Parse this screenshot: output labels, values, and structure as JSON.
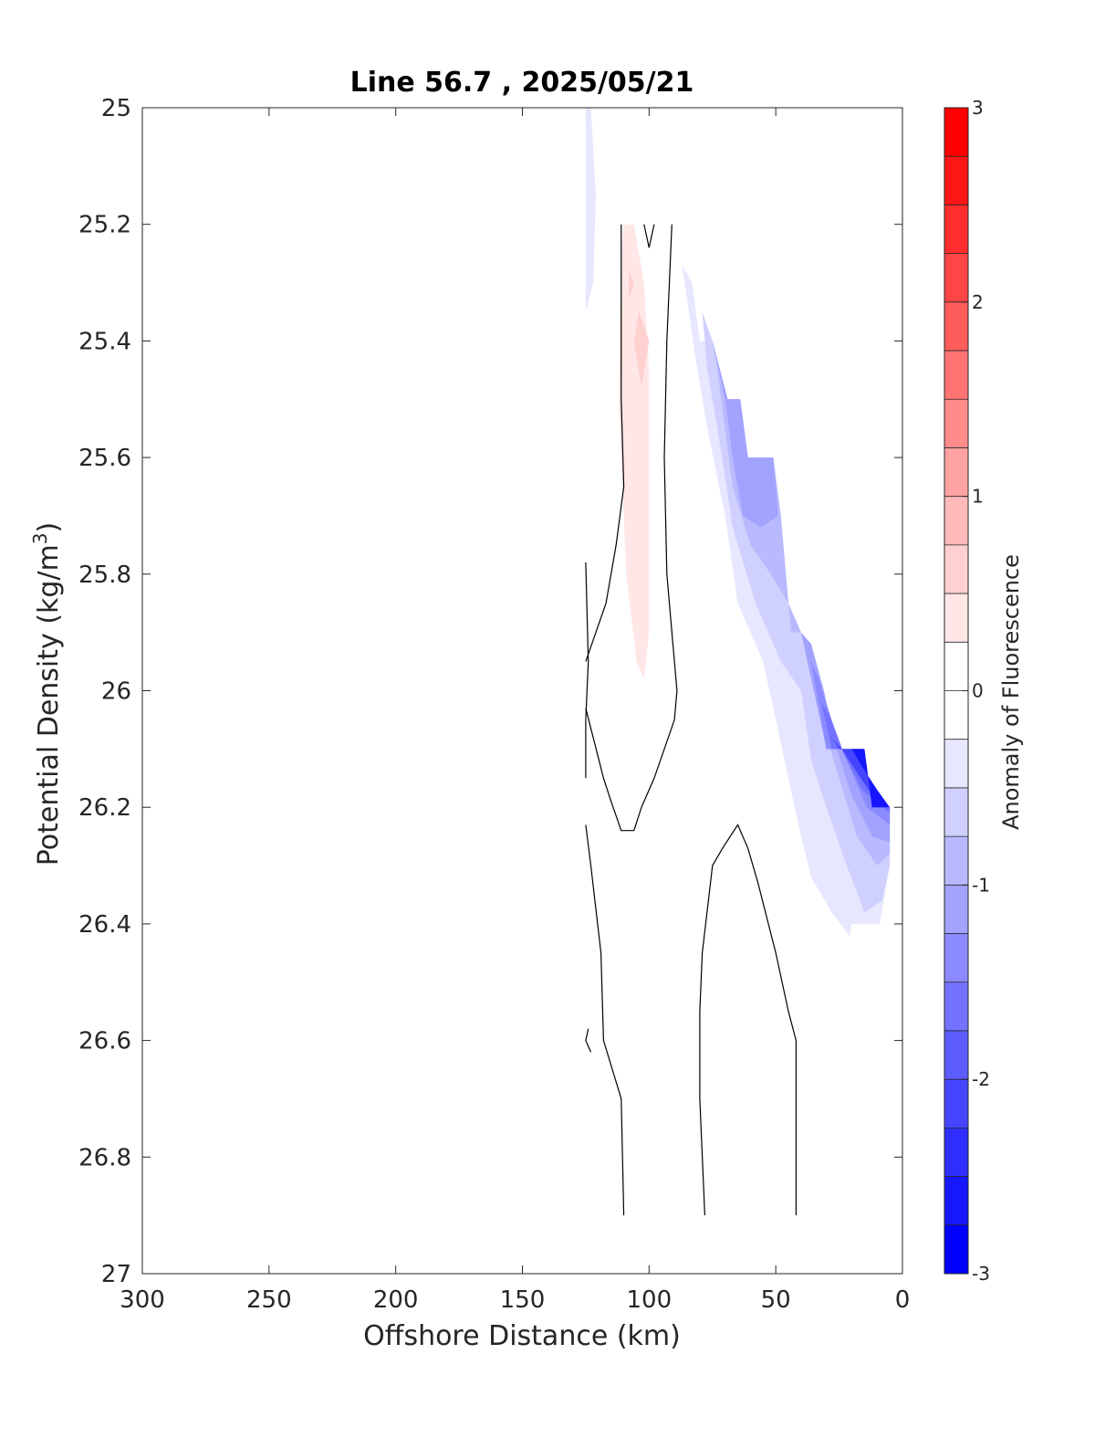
{
  "chart_data": {
    "type": "heatmap",
    "subtype": "filled-contour section",
    "title": "Line 56.7 , 2025/05/21",
    "xlabel": "Offshore Distance (km)",
    "ylabel_main": "Potential Density (kg/m",
    "ylabel_sup": "3",
    "ylabel_end": ")",
    "colorbar_label": "Anomaly of Fluorescence",
    "x_reversed": true,
    "xlim": [
      300,
      0
    ],
    "ylim": [
      25,
      27
    ],
    "y_reversed": true,
    "x_ticks": [
      300,
      250,
      200,
      150,
      100,
      50,
      0
    ],
    "y_ticks": [
      25,
      25.2,
      25.4,
      25.6,
      25.8,
      26,
      26.2,
      26.4,
      26.6,
      26.8,
      27
    ],
    "y_tick_labels": [
      "25",
      "25.2",
      "25.4",
      "25.6",
      "25.8",
      "26",
      "26.2",
      "26.4",
      "26.6",
      "26.8",
      "27"
    ],
    "clim": [
      -3,
      3
    ],
    "colorbar_ticks": [
      3,
      2,
      1,
      0,
      -1,
      -2,
      -3
    ],
    "colorbar_step": 0.25,
    "colorbar_colors_top_to_bottom": [
      "#ff0000",
      "#ff1717",
      "#ff2e2e",
      "#ff4545",
      "#ff5c5c",
      "#ff7373",
      "#ff8b8b",
      "#ffa2a2",
      "#ffb9b9",
      "#ffd0d0",
      "#ffe7e7",
      "#ffffff",
      "#ffffff",
      "#e7e7ff",
      "#d0d0ff",
      "#b9b9ff",
      "#a2a2ff",
      "#8b8bff",
      "#7373ff",
      "#5c5cff",
      "#4545ff",
      "#2e2eff",
      "#1717ff",
      "#0000ff"
    ],
    "regions": [
      {
        "name": "faint-blue-sliver",
        "level": -0.25,
        "color": "#e7e7ff",
        "outline": [
          [
            125,
            25.0
          ],
          [
            123,
            25.0
          ],
          [
            121,
            25.15
          ],
          [
            122,
            25.3
          ],
          [
            125,
            25.35
          ]
        ]
      },
      {
        "name": "positive-anomaly",
        "level": 0.25,
        "color": "#ffe7e7",
        "outline": [
          [
            110,
            25.2
          ],
          [
            106,
            25.2
          ],
          [
            102,
            25.3
          ],
          [
            100,
            25.45
          ],
          [
            100,
            25.9
          ],
          [
            102,
            25.98
          ],
          [
            105,
            25.95
          ],
          [
            109,
            25.8
          ],
          [
            112,
            25.5
          ],
          [
            111,
            25.25
          ]
        ]
      },
      {
        "name": "positive-anomaly-core",
        "level": 0.5,
        "color": "#ffd0d0",
        "outline": [
          [
            104,
            25.35
          ],
          [
            100,
            25.4
          ],
          [
            103,
            25.48
          ],
          [
            106,
            25.4
          ]
        ]
      },
      {
        "name": "positive-anomaly-spot",
        "level": 0.5,
        "color": "#ffd0d0",
        "outline": [
          [
            108,
            25.28
          ],
          [
            106,
            25.3
          ],
          [
            108,
            25.33
          ]
        ]
      },
      {
        "name": "negative-lv1",
        "level": -0.25,
        "color": "#e7e7ff",
        "outline": [
          [
            87,
            25.27
          ],
          [
            83,
            25.3
          ],
          [
            80,
            25.4
          ],
          [
            75,
            25.4
          ],
          [
            69,
            25.5
          ],
          [
            64,
            25.5
          ],
          [
            61,
            25.6
          ],
          [
            51,
            25.6
          ],
          [
            48,
            25.7
          ],
          [
            44,
            25.9
          ],
          [
            40,
            25.9
          ],
          [
            35,
            26.0
          ],
          [
            30,
            26.1
          ],
          [
            15,
            26.1
          ],
          [
            12,
            26.2
          ],
          [
            5,
            26.2
          ],
          [
            5,
            26.3
          ],
          [
            9,
            26.4
          ],
          [
            20,
            26.4
          ],
          [
            21,
            26.42
          ],
          [
            28,
            26.38
          ],
          [
            36,
            26.32
          ],
          [
            40,
            26.25
          ],
          [
            45,
            26.15
          ],
          [
            50,
            26.05
          ],
          [
            55,
            25.95
          ],
          [
            65,
            25.85
          ],
          [
            70,
            25.7
          ],
          [
            77,
            25.55
          ],
          [
            82,
            25.42
          ],
          [
            85,
            25.33
          ]
        ]
      },
      {
        "name": "negative-lv2",
        "level": -0.5,
        "color": "#d0d0ff",
        "outline": [
          [
            79,
            25.35
          ],
          [
            75,
            25.4
          ],
          [
            69,
            25.5
          ],
          [
            64,
            25.5
          ],
          [
            61,
            25.6
          ],
          [
            51,
            25.6
          ],
          [
            48,
            25.7
          ],
          [
            44,
            25.9
          ],
          [
            40,
            25.9
          ],
          [
            35,
            26.0
          ],
          [
            30,
            26.1
          ],
          [
            15,
            26.1
          ],
          [
            12,
            26.2
          ],
          [
            5,
            26.2
          ],
          [
            5,
            26.3
          ],
          [
            8,
            26.36
          ],
          [
            15,
            26.38
          ],
          [
            22,
            26.3
          ],
          [
            30,
            26.2
          ],
          [
            36,
            26.12
          ],
          [
            40,
            26.0
          ],
          [
            48,
            25.95
          ],
          [
            58,
            25.85
          ],
          [
            67,
            25.72
          ],
          [
            73,
            25.55
          ],
          [
            77,
            25.45
          ]
        ]
      },
      {
        "name": "negative-lv3",
        "level": -0.75,
        "color": "#b9b9ff",
        "outline": [
          [
            75,
            25.4
          ],
          [
            69,
            25.5
          ],
          [
            64,
            25.5
          ],
          [
            61,
            25.6
          ],
          [
            51,
            25.6
          ],
          [
            48,
            25.7
          ],
          [
            44,
            25.9
          ],
          [
            40,
            25.9
          ],
          [
            35,
            26.0
          ],
          [
            30,
            26.1
          ],
          [
            15,
            26.1
          ],
          [
            12,
            26.2
          ],
          [
            5,
            26.2
          ],
          [
            5,
            26.28
          ],
          [
            10,
            26.3
          ],
          [
            18,
            26.25
          ],
          [
            25,
            26.15
          ],
          [
            32,
            26.05
          ],
          [
            38,
            25.92
          ],
          [
            45,
            25.85
          ],
          [
            52,
            25.8
          ],
          [
            60,
            25.75
          ],
          [
            67,
            25.65
          ],
          [
            71,
            25.52
          ],
          [
            73,
            25.45
          ]
        ]
      },
      {
        "name": "negative-lv4",
        "level": -1.0,
        "color": "#a2a2ff",
        "outline": [
          [
            75,
            25.4
          ],
          [
            69,
            25.5
          ],
          [
            64,
            25.5
          ],
          [
            61,
            25.6
          ],
          [
            51,
            25.6
          ],
          [
            49,
            25.7
          ],
          [
            56,
            25.72
          ],
          [
            63,
            25.7
          ],
          [
            67,
            25.6
          ],
          [
            70,
            25.5
          ]
        ]
      },
      {
        "name": "negative-lv4-coast",
        "level": -1.0,
        "color": "#a2a2ff",
        "outline": [
          [
            40,
            25.9
          ],
          [
            35,
            26.0
          ],
          [
            30,
            26.1
          ],
          [
            15,
            26.1
          ],
          [
            12,
            26.2
          ],
          [
            5,
            26.2
          ],
          [
            5,
            26.26
          ],
          [
            12,
            26.25
          ],
          [
            20,
            26.18
          ],
          [
            26,
            26.1
          ],
          [
            31,
            26.0
          ],
          [
            36,
            25.92
          ]
        ]
      },
      {
        "name": "negative-lv5",
        "level": -1.25,
        "color": "#8b8bff",
        "outline": [
          [
            36,
            25.95
          ],
          [
            30,
            26.1
          ],
          [
            15,
            26.1
          ],
          [
            12,
            26.2
          ],
          [
            5,
            26.2
          ],
          [
            5,
            26.23
          ],
          [
            14,
            26.2
          ],
          [
            22,
            26.12
          ],
          [
            28,
            26.05
          ],
          [
            33,
            25.98
          ]
        ]
      },
      {
        "name": "negative-lv6",
        "level": -1.5,
        "color": "#7373ff",
        "outline": [
          [
            32,
            26.02
          ],
          [
            28,
            26.1
          ],
          [
            15,
            26.1
          ],
          [
            12,
            26.2
          ],
          [
            5,
            26.2
          ],
          [
            5,
            26.21
          ],
          [
            16,
            26.17
          ],
          [
            24,
            26.1
          ],
          [
            29,
            26.04
          ]
        ]
      },
      {
        "name": "negative-lv7",
        "level": -2.0,
        "color": "#4545ff",
        "outline": [
          [
            28,
            26.08
          ],
          [
            25,
            26.1
          ],
          [
            15,
            26.1
          ],
          [
            12,
            26.2
          ],
          [
            5,
            26.2
          ],
          [
            12,
            26.18
          ],
          [
            18,
            26.14
          ],
          [
            24,
            26.1
          ]
        ]
      },
      {
        "name": "negative-core",
        "level": -2.5,
        "color": "#1717ff",
        "outline": [
          [
            20,
            26.1
          ],
          [
            15,
            26.1
          ],
          [
            12,
            26.2
          ],
          [
            5,
            26.2
          ],
          [
            10,
            26.17
          ],
          [
            16,
            26.13
          ]
        ]
      }
    ],
    "zero_contours": [
      {
        "name": "zero-contour-west-upper",
        "points": [
          [
            111,
            25.2
          ],
          [
            111,
            25.5
          ],
          [
            110,
            25.65
          ],
          [
            113,
            25.75
          ],
          [
            117,
            25.85
          ],
          [
            125,
            25.95
          ]
        ]
      },
      {
        "name": "zero-contour-west-mid",
        "points": [
          [
            125,
            25.78
          ],
          [
            124,
            25.95
          ],
          [
            125,
            26.05
          ],
          [
            125,
            26.15
          ]
        ]
      },
      {
        "name": "zero-contour-center",
        "points": [
          [
            91,
            25.2
          ],
          [
            93,
            25.4
          ],
          [
            94,
            25.6
          ],
          [
            93,
            25.8
          ],
          [
            91,
            25.9
          ],
          [
            89,
            26.0
          ],
          [
            90,
            26.05
          ],
          [
            94,
            26.1
          ],
          [
            98,
            26.15
          ],
          [
            103,
            26.2
          ],
          [
            106,
            26.24
          ],
          [
            111,
            26.24
          ],
          [
            115,
            26.19
          ],
          [
            118,
            26.15
          ],
          [
            125,
            26.03
          ]
        ]
      },
      {
        "name": "zero-contour-v",
        "points": [
          [
            102,
            25.2
          ],
          [
            100,
            25.24
          ],
          [
            98,
            25.2
          ]
        ]
      },
      {
        "name": "zero-contour-west-lower",
        "points": [
          [
            125,
            26.23
          ],
          [
            123,
            26.3
          ],
          [
            119,
            26.45
          ],
          [
            118,
            26.6
          ],
          [
            111,
            26.7
          ],
          [
            110,
            26.9
          ]
        ]
      },
      {
        "name": "zero-contour-arch",
        "points": [
          [
            78,
            26.9
          ],
          [
            80,
            26.7
          ],
          [
            80,
            26.55
          ],
          [
            79,
            26.45
          ],
          [
            75,
            26.3
          ],
          [
            71,
            26.27
          ],
          [
            65,
            26.23
          ],
          [
            61,
            26.27
          ],
          [
            57,
            26.33
          ],
          [
            50,
            26.45
          ],
          [
            45,
            26.55
          ],
          [
            42,
            26.6
          ],
          [
            42,
            26.9
          ]
        ]
      },
      {
        "name": "zero-contour-small-hook",
        "points": [
          [
            124,
            26.58
          ],
          [
            125,
            26.6
          ],
          [
            123,
            26.62
          ]
        ]
      }
    ]
  }
}
